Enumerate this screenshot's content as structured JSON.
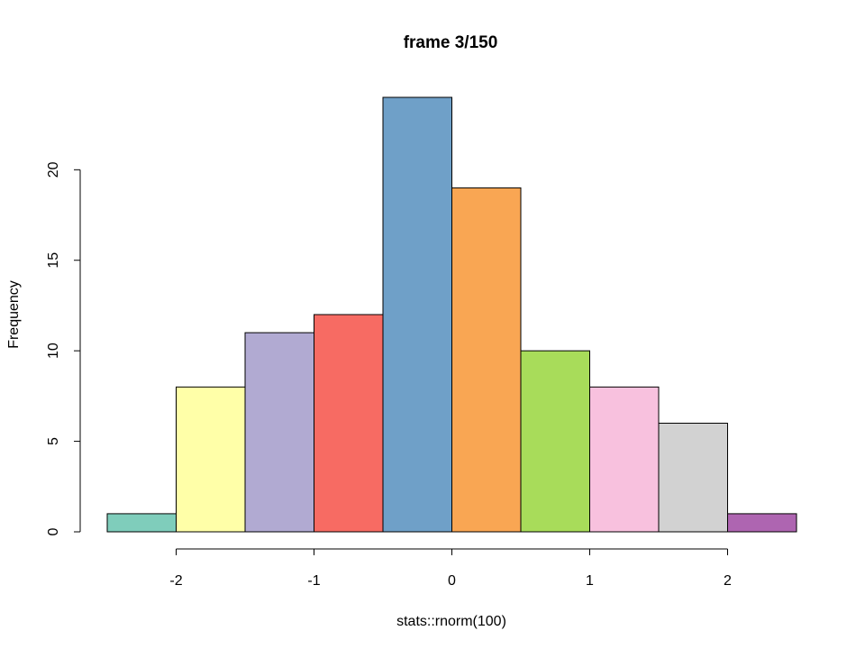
{
  "chart_data": {
    "type": "bar",
    "title": "frame 3/150",
    "xlabel": "stats::rnorm(100)",
    "ylabel": "Frequency",
    "bin_width": 0.5,
    "bins": [
      {
        "from": -2.5,
        "to": -2.0,
        "count": 1,
        "color": "#7fcdbb"
      },
      {
        "from": -2.0,
        "to": -1.5,
        "count": 8,
        "color": "#ffffa8"
      },
      {
        "from": -1.5,
        "to": -1.0,
        "count": 11,
        "color": "#b1aad2"
      },
      {
        "from": -1.0,
        "to": -0.5,
        "count": 12,
        "color": "#f76b63"
      },
      {
        "from": -0.5,
        "to": 0.0,
        "count": 24,
        "color": "#6fa0c8"
      },
      {
        "from": 0.0,
        "to": 0.5,
        "count": 19,
        "color": "#f9a653"
      },
      {
        "from": 0.5,
        "to": 1.0,
        "count": 10,
        "color": "#a8dc5a"
      },
      {
        "from": 1.0,
        "to": 1.5,
        "count": 8,
        "color": "#f8c1de"
      },
      {
        "from": 1.5,
        "to": 2.0,
        "count": 6,
        "color": "#d2d2d2"
      },
      {
        "from": 2.0,
        "to": 2.5,
        "count": 1,
        "color": "#ae65b1"
      }
    ],
    "x_ticks": [
      -2,
      -1,
      0,
      1,
      2
    ],
    "x_tick_labels": [
      "-2",
      "-1",
      "0",
      "1",
      "2"
    ],
    "y_ticks": [
      0,
      5,
      10,
      15,
      20
    ],
    "y_tick_labels": [
      "0",
      "5",
      "10",
      "15",
      "20"
    ],
    "xlim": [
      -2.5,
      2.5
    ],
    "ylim": [
      0,
      24
    ],
    "grid": false,
    "legend": "none"
  }
}
